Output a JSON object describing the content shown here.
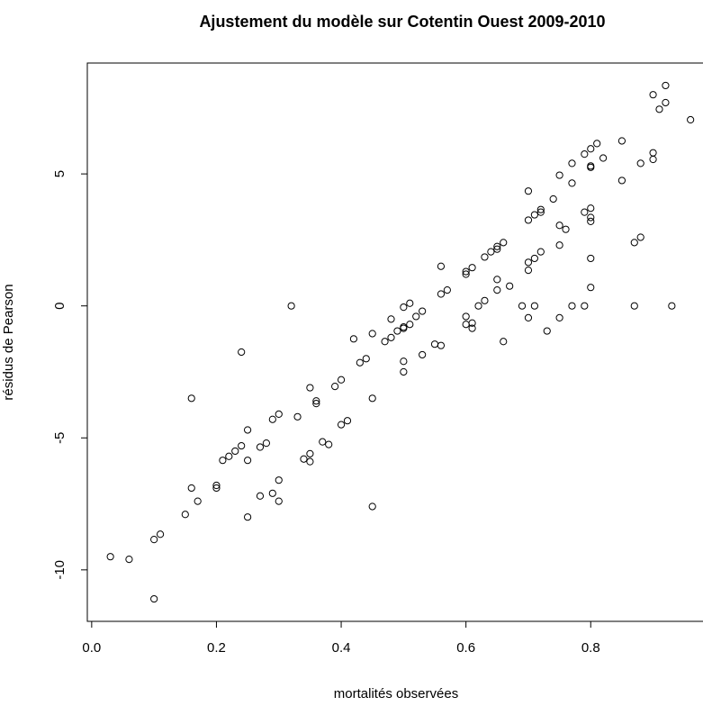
{
  "chart_data": {
    "type": "scatter",
    "title": "Ajustement du modèle sur Cotentin Ouest 2009-2010",
    "x_label": "mortalités observées",
    "y_label": "résidus de Pearson",
    "xlim": [
      -0.007,
      0.98
    ],
    "ylim": [
      -11.95,
      9.2
    ],
    "xticks": [
      {
        "value": 0,
        "label": "0.0"
      },
      0.2,
      0.4,
      0.6,
      0.8
    ],
    "yticks": [
      -10,
      -5,
      0,
      5
    ],
    "grid": false,
    "series": [
      {
        "name": "résidus",
        "color": "#000000",
        "x": [
          0.03,
          0.06,
          0.1,
          0.11,
          0.1,
          0.15,
          0.17,
          0.16,
          0.16,
          0.2,
          0.2,
          0.21,
          0.22,
          0.23,
          0.24,
          0.27,
          0.28,
          0.27,
          0.24,
          0.25,
          0.25,
          0.25,
          0.29,
          0.3,
          0.29,
          0.3,
          0.3,
          0.32,
          0.33,
          0.34,
          0.35,
          0.35,
          0.35,
          0.36,
          0.36,
          0.37,
          0.38,
          0.39,
          0.4,
          0.4,
          0.41,
          0.42,
          0.43,
          0.44,
          0.45,
          0.45,
          0.45,
          0.47,
          0.48,
          0.48,
          0.49,
          0.5,
          0.5,
          0.5,
          0.5,
          0.5,
          0.51,
          0.51,
          0.52,
          0.53,
          0.53,
          0.55,
          0.56,
          0.56,
          0.56,
          0.57,
          0.6,
          0.6,
          0.6,
          0.6,
          0.61,
          0.61,
          0.61,
          0.62,
          0.63,
          0.63,
          0.64,
          0.65,
          0.65,
          0.65,
          0.65,
          0.66,
          0.66,
          0.67,
          0.69,
          0.7,
          0.7,
          0.7,
          0.7,
          0.7,
          0.71,
          0.71,
          0.71,
          0.72,
          0.72,
          0.72,
          0.73,
          0.74,
          0.75,
          0.75,
          0.75,
          0.75,
          0.76,
          0.77,
          0.77,
          0.77,
          0.79,
          0.79,
          0.79,
          0.8,
          0.8,
          0.8,
          0.8,
          0.8,
          0.8,
          0.8,
          0.8,
          0.81,
          0.82,
          0.85,
          0.85,
          0.87,
          0.87,
          0.88,
          0.88,
          0.9,
          0.9,
          0.9,
          0.91,
          0.92,
          0.92,
          0.93,
          0.96
        ],
        "values": [
          -9.5,
          -9.6,
          -8.85,
          -8.65,
          -11.1,
          -7.9,
          -7.4,
          -6.9,
          -3.5,
          -6.8,
          -6.9,
          -5.85,
          -5.7,
          -5.5,
          -5.3,
          -7.2,
          -5.2,
          -5.35,
          -1.75,
          -4.7,
          -5.85,
          -8.0,
          -4.3,
          -4.1,
          -7.1,
          -7.4,
          -6.6,
          0.0,
          -4.2,
          -5.8,
          -5.9,
          -5.6,
          -3.1,
          -3.6,
          -3.7,
          -5.15,
          -5.25,
          -3.05,
          -2.8,
          -4.5,
          -4.35,
          -1.25,
          -2.15,
          -2.0,
          -1.05,
          -3.5,
          -7.6,
          -1.35,
          -0.5,
          -1.2,
          -0.95,
          -0.8,
          -0.85,
          -2.1,
          -2.5,
          -0.05,
          0.1,
          -0.7,
          -0.4,
          -0.2,
          -1.85,
          -1.45,
          -1.5,
          1.5,
          0.45,
          0.6,
          1.2,
          1.3,
          -0.4,
          -0.7,
          -0.65,
          -0.85,
          1.45,
          0.0,
          1.85,
          0.2,
          2.05,
          2.25,
          2.15,
          0.6,
          1.0,
          2.4,
          -1.35,
          0.75,
          0.0,
          4.35,
          3.25,
          1.65,
          1.35,
          -0.45,
          3.45,
          1.8,
          0.0,
          3.65,
          3.55,
          2.05,
          -0.95,
          4.05,
          4.95,
          3.05,
          2.3,
          -0.45,
          2.9,
          5.4,
          4.65,
          0.0,
          5.75,
          3.55,
          0.0,
          5.95,
          5.3,
          5.25,
          3.7,
          3.35,
          3.2,
          1.8,
          0.7,
          6.15,
          5.6,
          6.25,
          4.75,
          0.0,
          2.4,
          5.4,
          2.6,
          8.0,
          5.8,
          5.55,
          7.45,
          8.35,
          7.7,
          0.0,
          7.05
        ]
      }
    ]
  }
}
